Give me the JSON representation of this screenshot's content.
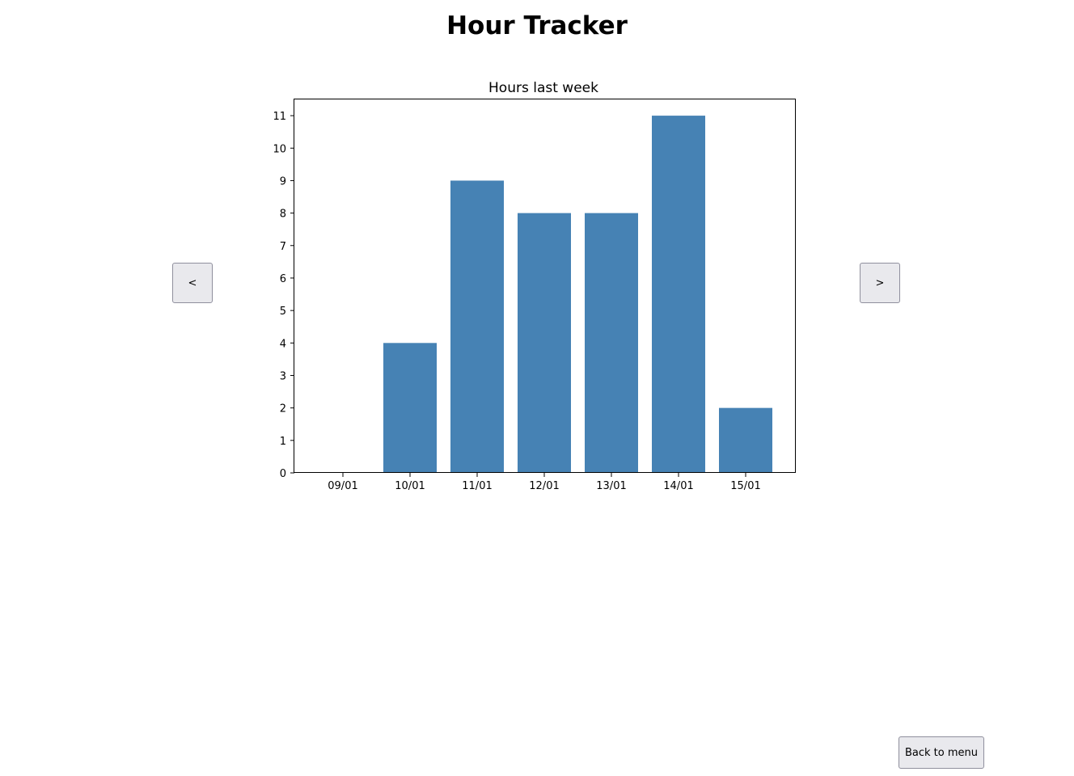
{
  "app": {
    "title": "Hour Tracker"
  },
  "navigation": {
    "prev_label": "<",
    "next_label": ">",
    "menu_label": "Back to menu"
  },
  "chart_data": {
    "type": "bar",
    "title": "Hours last week",
    "xlabel": "",
    "ylabel": "",
    "categories": [
      "09/01",
      "10/01",
      "11/01",
      "12/01",
      "13/01",
      "14/01",
      "15/01"
    ],
    "values": [
      0,
      4,
      9,
      8,
      8,
      11,
      2
    ],
    "ylim": [
      0,
      11.5
    ],
    "yticks": [
      0,
      1,
      2,
      3,
      4,
      5,
      6,
      7,
      8,
      9,
      10,
      11
    ],
    "bar_color": "#4682b4",
    "grid": false
  }
}
